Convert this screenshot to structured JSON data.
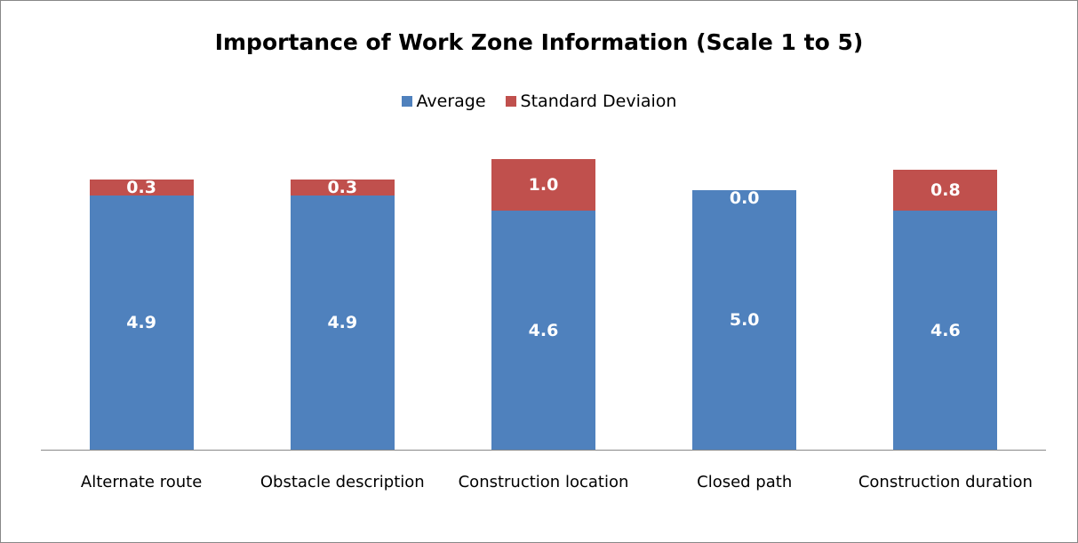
{
  "chart_data": {
    "type": "stacked_bar",
    "title": "Importance of Work Zone Information (Scale 1 to 5)",
    "categories": [
      "Alternate route",
      "Obstacle description",
      "Construction location",
      "Closed path",
      "Construction duration"
    ],
    "series": [
      {
        "name": "Average",
        "color": "#4f81bd",
        "values": [
          4.9,
          4.9,
          4.6,
          5.0,
          4.6
        ],
        "value_labels": [
          "4.9",
          "4.9",
          "4.6",
          "5.0",
          "4.6"
        ]
      },
      {
        "name": "Standard Deviaion",
        "color": "#c0504d",
        "values": [
          0.3,
          0.3,
          1.0,
          0.0,
          0.8
        ],
        "value_labels": [
          "0.3",
          "0.3",
          "1.0",
          "0.0",
          "0.8"
        ]
      }
    ],
    "legend": "top"
  }
}
